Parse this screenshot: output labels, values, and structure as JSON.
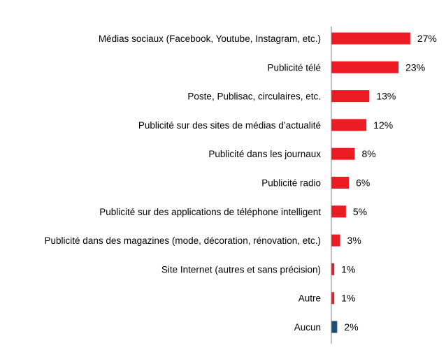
{
  "chart_data": {
    "type": "bar",
    "orientation": "horizontal",
    "title": "",
    "xlabel": "",
    "ylabel": "",
    "value_suffix": "%",
    "xlim": [
      0,
      30
    ],
    "grid": false,
    "legend": "none",
    "categories": [
      "Médias sociaux (Facebook, Youtube, Instagram, etc.)",
      "Publicité télé",
      "Poste, Publisac, circulaires, etc.",
      "Publicité sur des sites de médias d’actualité",
      "Publicité dans les journaux",
      "Publicité radio",
      "Publicité sur des applications de téléphone intelligent",
      "Publicité dans des magazines (mode, décoration, rénovation, etc.)",
      "Site Internet (autres et sans précision)",
      "Autre",
      "Aucun"
    ],
    "values": [
      27,
      23,
      13,
      12,
      8,
      6,
      5,
      3,
      1,
      1,
      2
    ],
    "bar_colors": [
      "#ec1c24",
      "#ec1c24",
      "#ec1c24",
      "#ec1c24",
      "#ec1c24",
      "#ec1c24",
      "#ec1c24",
      "#ec1c24",
      "#ec1c24",
      "#ec1c24",
      "#1f4e79"
    ]
  }
}
